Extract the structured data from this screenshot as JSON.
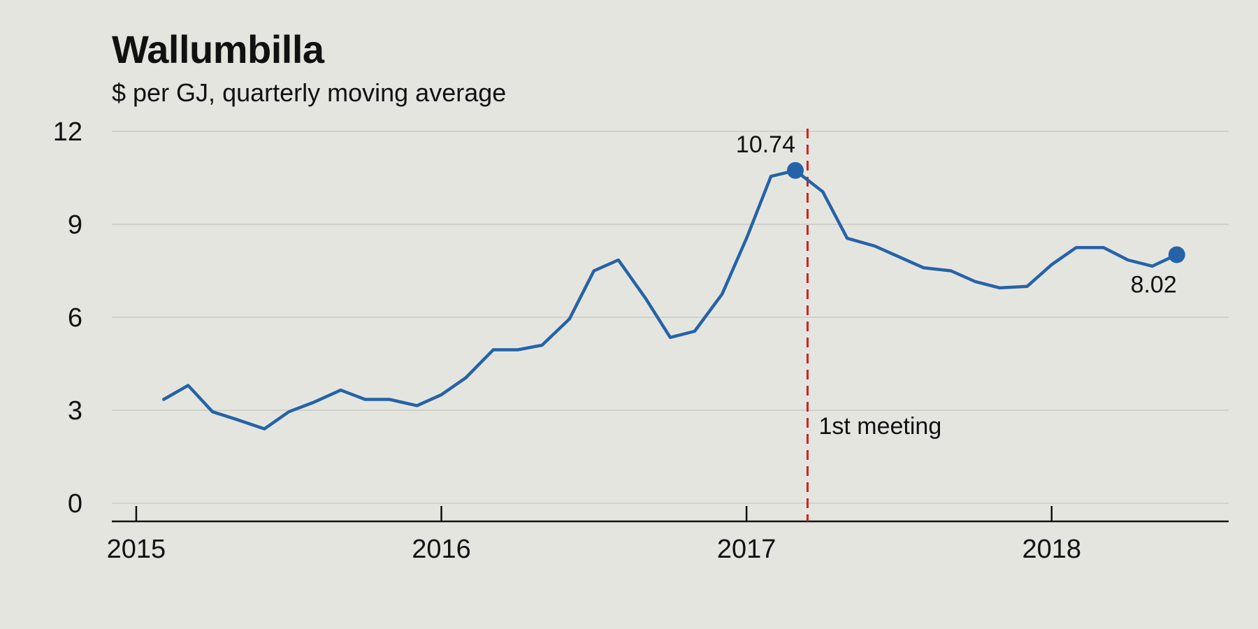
{
  "chart_data": {
    "type": "line",
    "title": "Wallumbilla",
    "subtitle": "$ per GJ, quarterly moving average",
    "ylim": [
      0,
      12
    ],
    "yticks": [
      0,
      3,
      6,
      9,
      12
    ],
    "xlim": [
      2014.92,
      2018.58
    ],
    "xticks": [
      2015,
      2016,
      2017,
      2018
    ],
    "grid": "horizontal",
    "colors": {
      "line": "#2563a8",
      "marker_line": "#d42020",
      "grid": "#c4c4bf",
      "axis": "#111111"
    },
    "series": [
      {
        "x": [
          2015.09,
          2015.17,
          2015.25,
          2015.33,
          2015.42,
          2015.5,
          2015.58,
          2015.67,
          2015.75,
          2015.83,
          2015.92,
          2016.0,
          2016.08,
          2016.17,
          2016.25,
          2016.33,
          2016.42,
          2016.5,
          2016.58,
          2016.67,
          2016.75,
          2016.83,
          2016.92,
          2017.0,
          2017.08,
          2017.16,
          2017.25,
          2017.33,
          2017.42,
          2017.5,
          2017.58,
          2017.67,
          2017.75,
          2017.83,
          2017.92,
          2018.0,
          2018.08,
          2018.17,
          2018.25,
          2018.33,
          2018.41
        ],
        "values": [
          3.35,
          3.8,
          2.95,
          2.7,
          2.4,
          2.95,
          3.25,
          3.65,
          3.35,
          3.35,
          3.15,
          3.5,
          4.05,
          4.95,
          4.95,
          5.1,
          5.95,
          7.5,
          7.85,
          6.6,
          5.35,
          5.55,
          6.75,
          8.55,
          10.55,
          10.74,
          10.05,
          8.55,
          8.3,
          7.95,
          7.6,
          7.5,
          7.15,
          6.95,
          7.0,
          7.7,
          8.25,
          8.25,
          7.85,
          7.65,
          8.02
        ]
      }
    ],
    "highlights": [
      {
        "x": 2017.16,
        "y": 10.74,
        "label": "10.74"
      },
      {
        "x": 2018.41,
        "y": 8.02,
        "label": "8.02"
      }
    ],
    "reference_line": {
      "x": 2017.2,
      "label": "1st meeting"
    }
  }
}
